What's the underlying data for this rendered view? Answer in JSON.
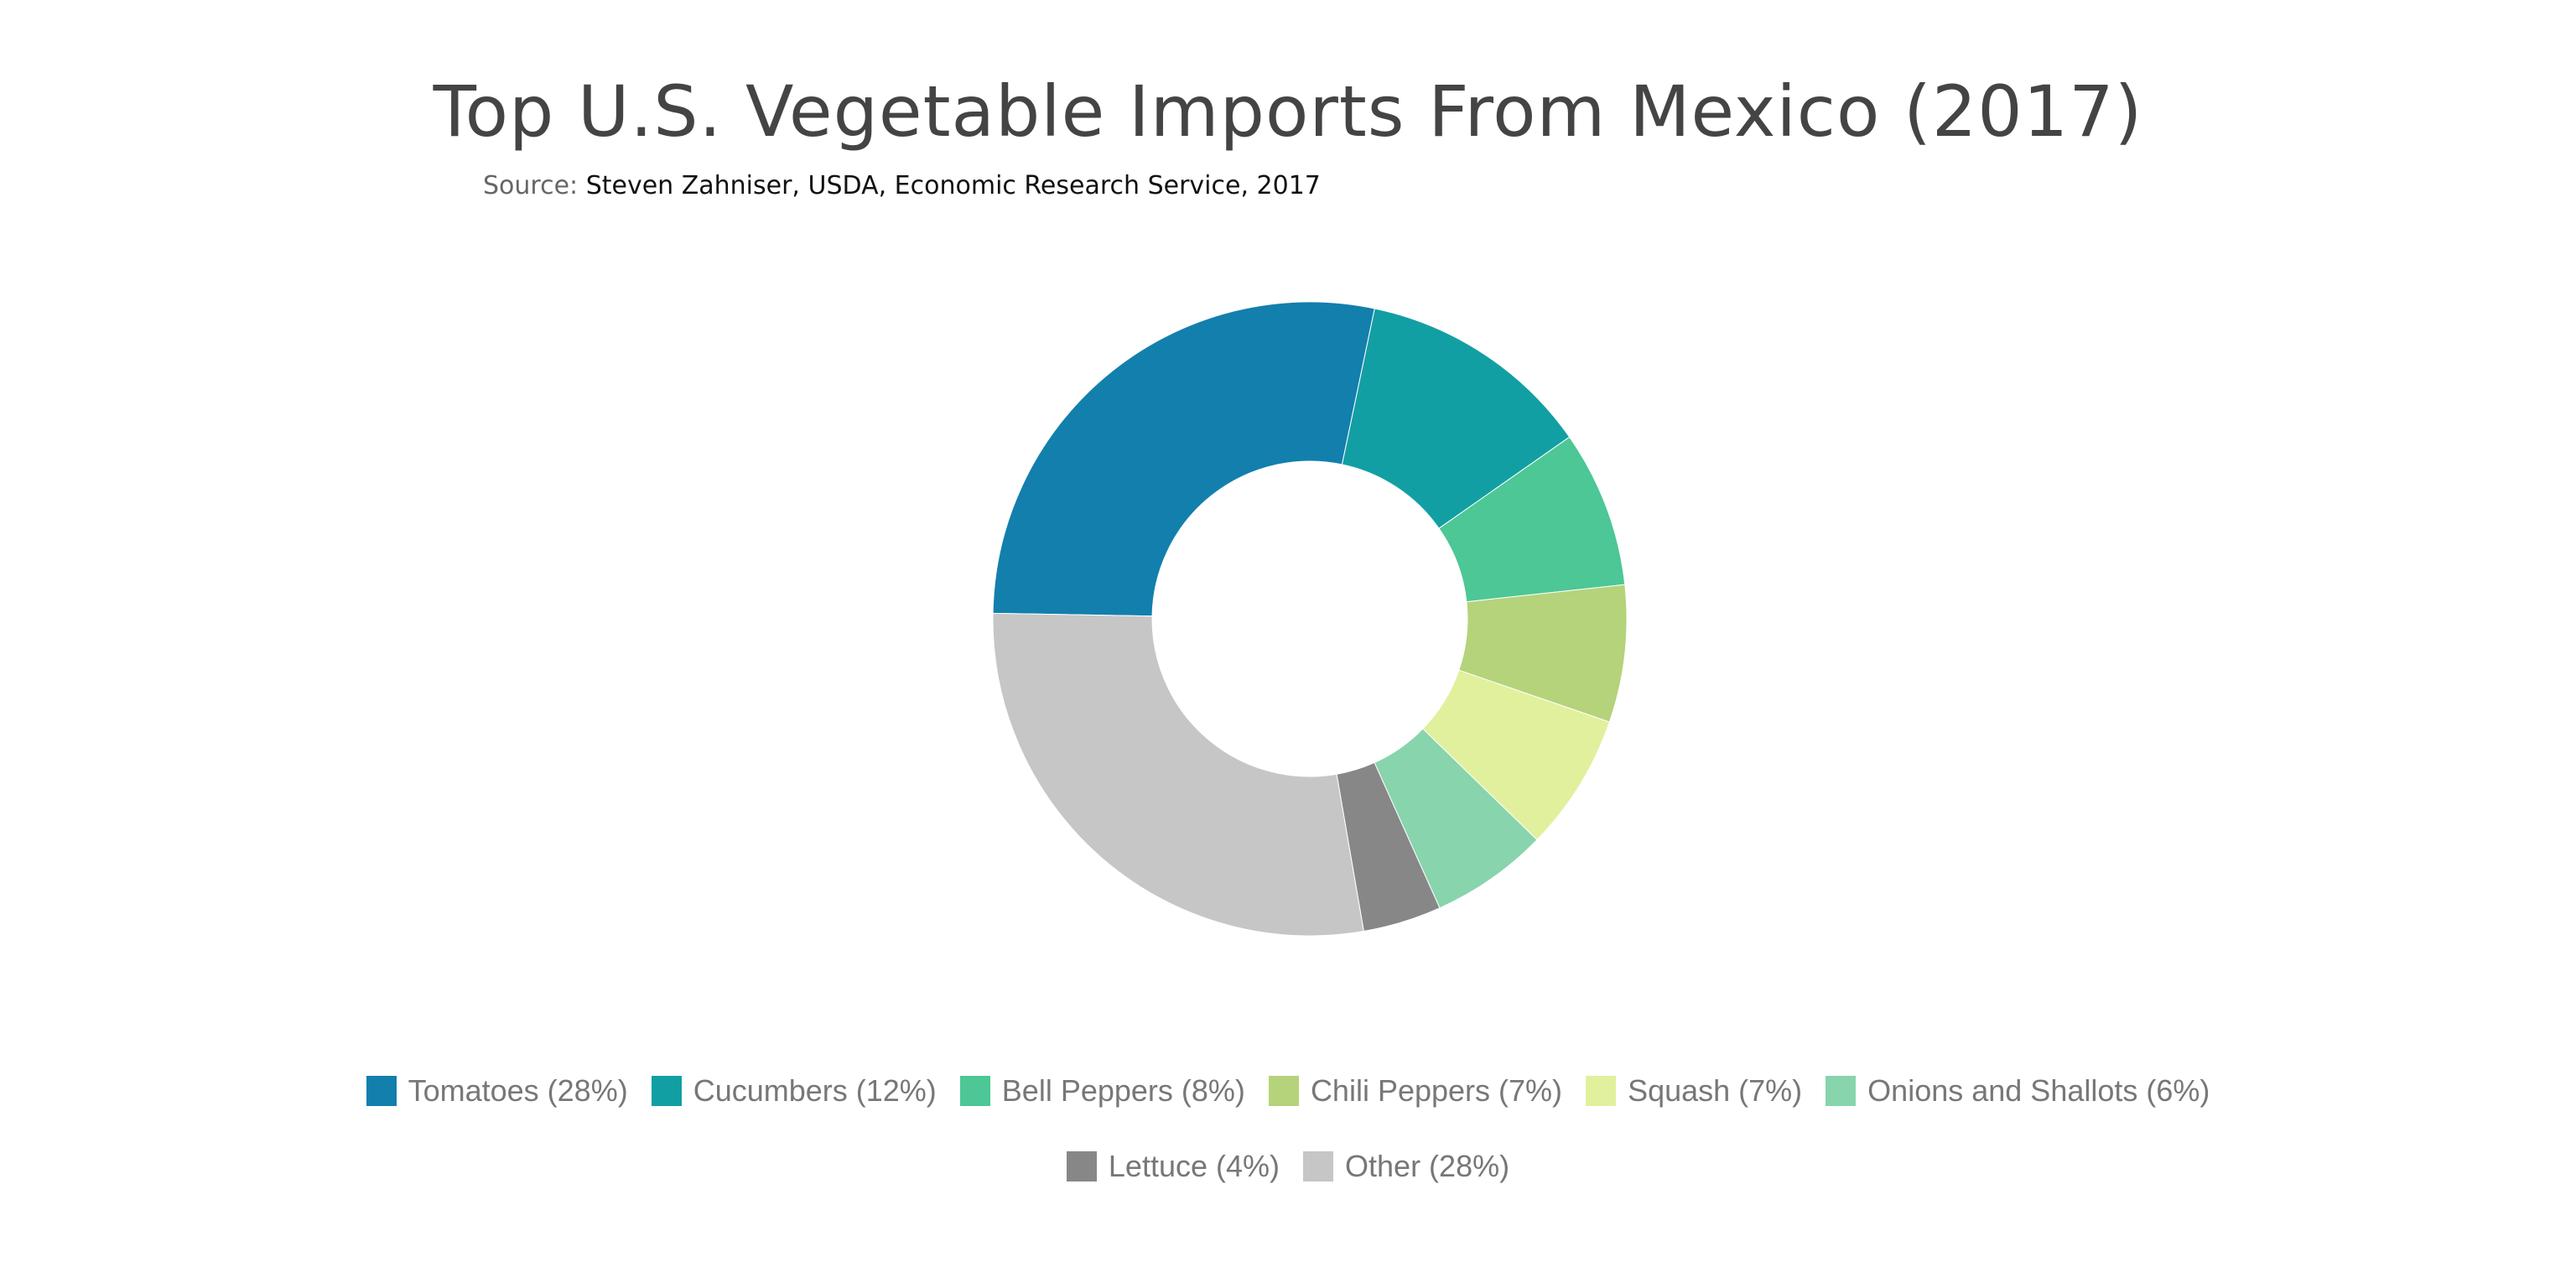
{
  "header": {
    "title": "Top U.S. Vegetable Imports From Mexico (2017)",
    "source_label": "Source: ",
    "source_text": "Steven Zahniser, USDA, Economic Research Service, 2017"
  },
  "chart_data": {
    "type": "pie",
    "style": "donut",
    "title": "Top U.S. Vegetable Imports From Mexico (2017)",
    "legend_position": "bottom",
    "slices": [
      {
        "label": "Tomatoes (28%)",
        "value": 28,
        "color": "#137fad"
      },
      {
        "label": "Cucumbers (12%)",
        "value": 12,
        "color": "#129fa3"
      },
      {
        "label": "Bell Peppers (8%)",
        "value": 8,
        "color": "#4cc795"
      },
      {
        "label": "Chili Peppers (7%)",
        "value": 7,
        "color": "#b4d37a"
      },
      {
        "label": "Squash (7%)",
        "value": 7,
        "color": "#e1f09d"
      },
      {
        "label": "Onions and Shallots (6%)",
        "value": 6,
        "color": "#88d4ac"
      },
      {
        "label": "Lettuce (4%)",
        "value": 4,
        "color": "#878787"
      },
      {
        "label": "Other (28%)",
        "value": 28,
        "color": "#c6c6c6"
      }
    ]
  }
}
